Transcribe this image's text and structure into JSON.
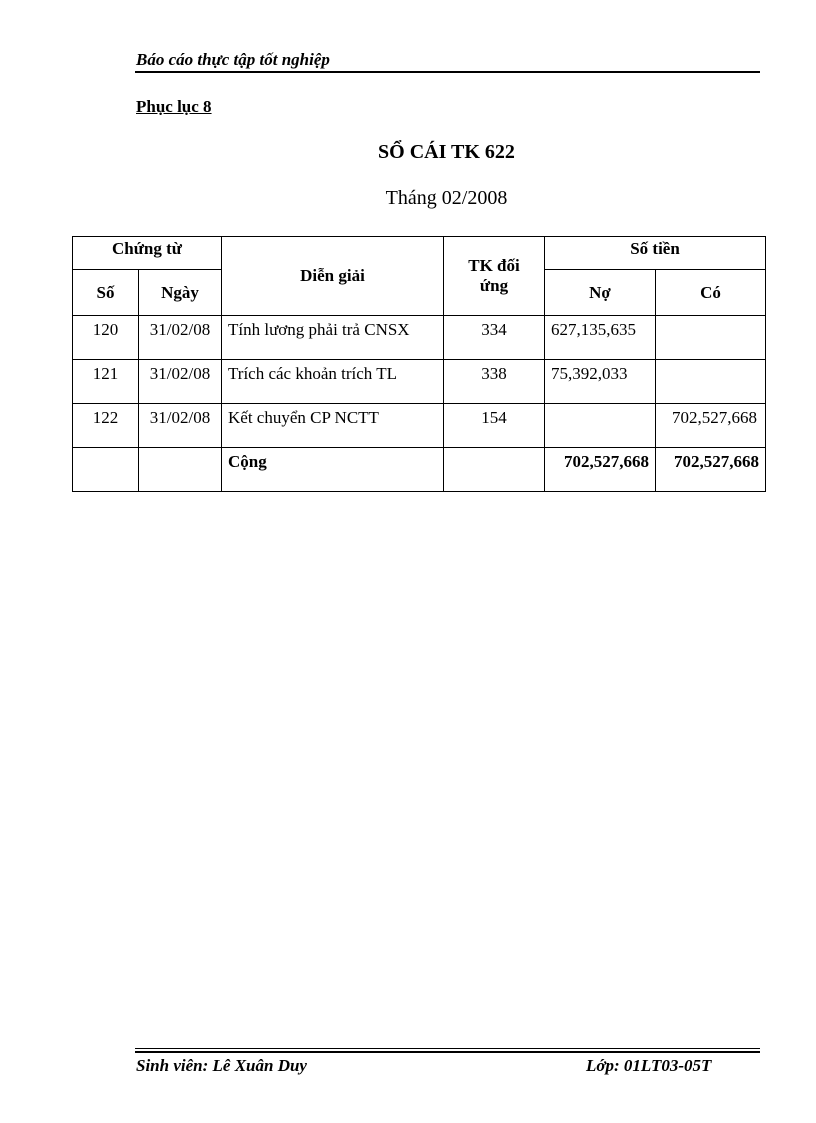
{
  "header": {
    "title": "Báo cáo thực tập tốt nghiệp"
  },
  "appendix": "Phục lục 8",
  "document": {
    "title": "SỔ CÁI TK 622",
    "subtitle": "Tháng  02/2008"
  },
  "table": {
    "headers": {
      "voucher": "Chứng từ",
      "number": "Số",
      "date": "Ngày",
      "description": "Diễn giải",
      "account": "TK đối ứng",
      "amount": "Số tiền",
      "debit": "Nợ",
      "credit": "Có"
    },
    "rows": [
      {
        "number": "120",
        "date": "31/02/08",
        "description": "Tính lương phải trả CNSX",
        "account": "334",
        "debit": "627,135,635",
        "credit": ""
      },
      {
        "number": "121",
        "date": "31/02/08",
        "description": "Trích các khoản trích TL",
        "account": "338",
        "debit": "75,392,033",
        "credit": ""
      },
      {
        "number": "122",
        "date": "31/02/08",
        "description": "Kết chuyển CP NCTT",
        "account": "154",
        "debit": "",
        "credit": "702,527,668"
      }
    ],
    "total": {
      "label": "Cộng",
      "debit": "702,527,668",
      "credit": "702,527,668"
    }
  },
  "footer": {
    "student": "Sinh viên: Lê Xuân Duy",
    "class": "Lớp: 01LT03-05T"
  }
}
